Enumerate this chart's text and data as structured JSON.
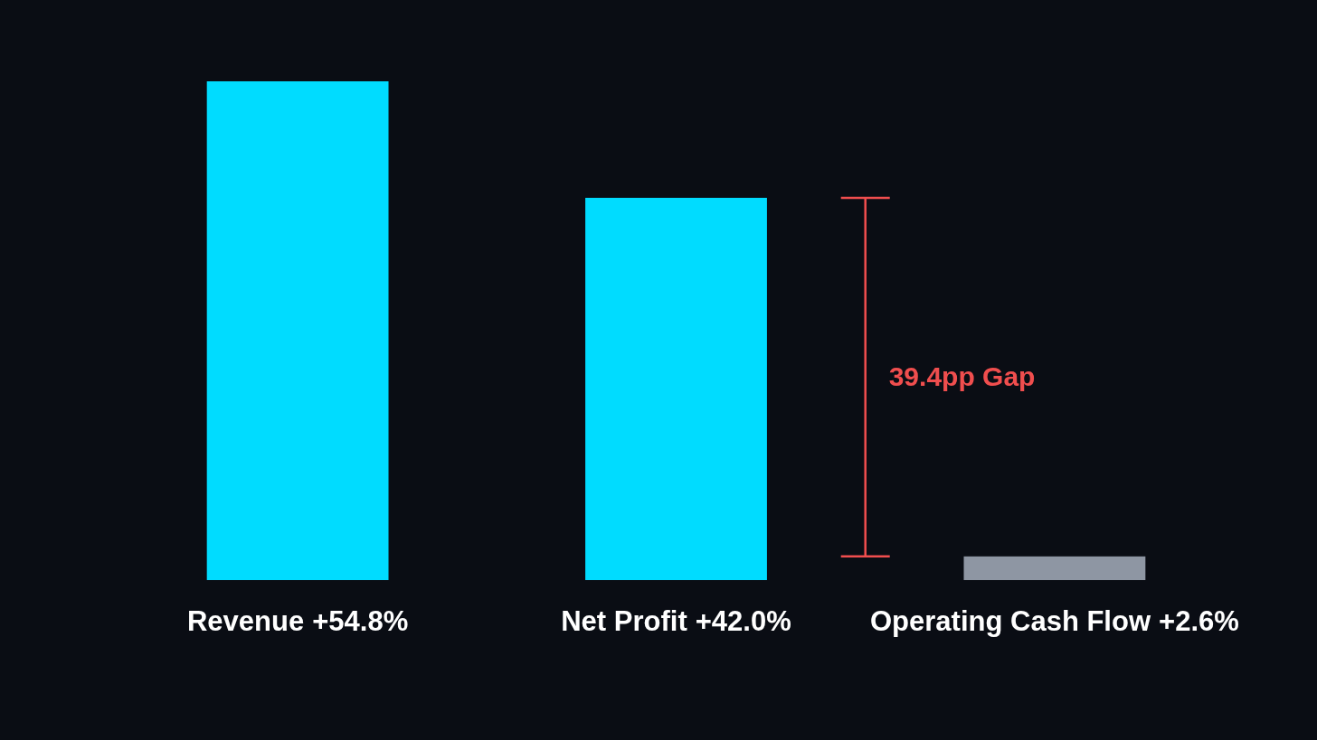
{
  "chart_data": {
    "type": "bar",
    "categories": [
      "Revenue",
      "Net Profit",
      "Operating Cash Flow"
    ],
    "values": [
      54.8,
      42.0,
      2.6
    ],
    "value_labels": [
      "+54.8%",
      "+42.0%",
      "+2.6%"
    ],
    "colors": [
      "#00dcff",
      "#00dcff",
      "#8e96a3"
    ],
    "annotations": [
      "39.4pp Gap"
    ]
  }
}
